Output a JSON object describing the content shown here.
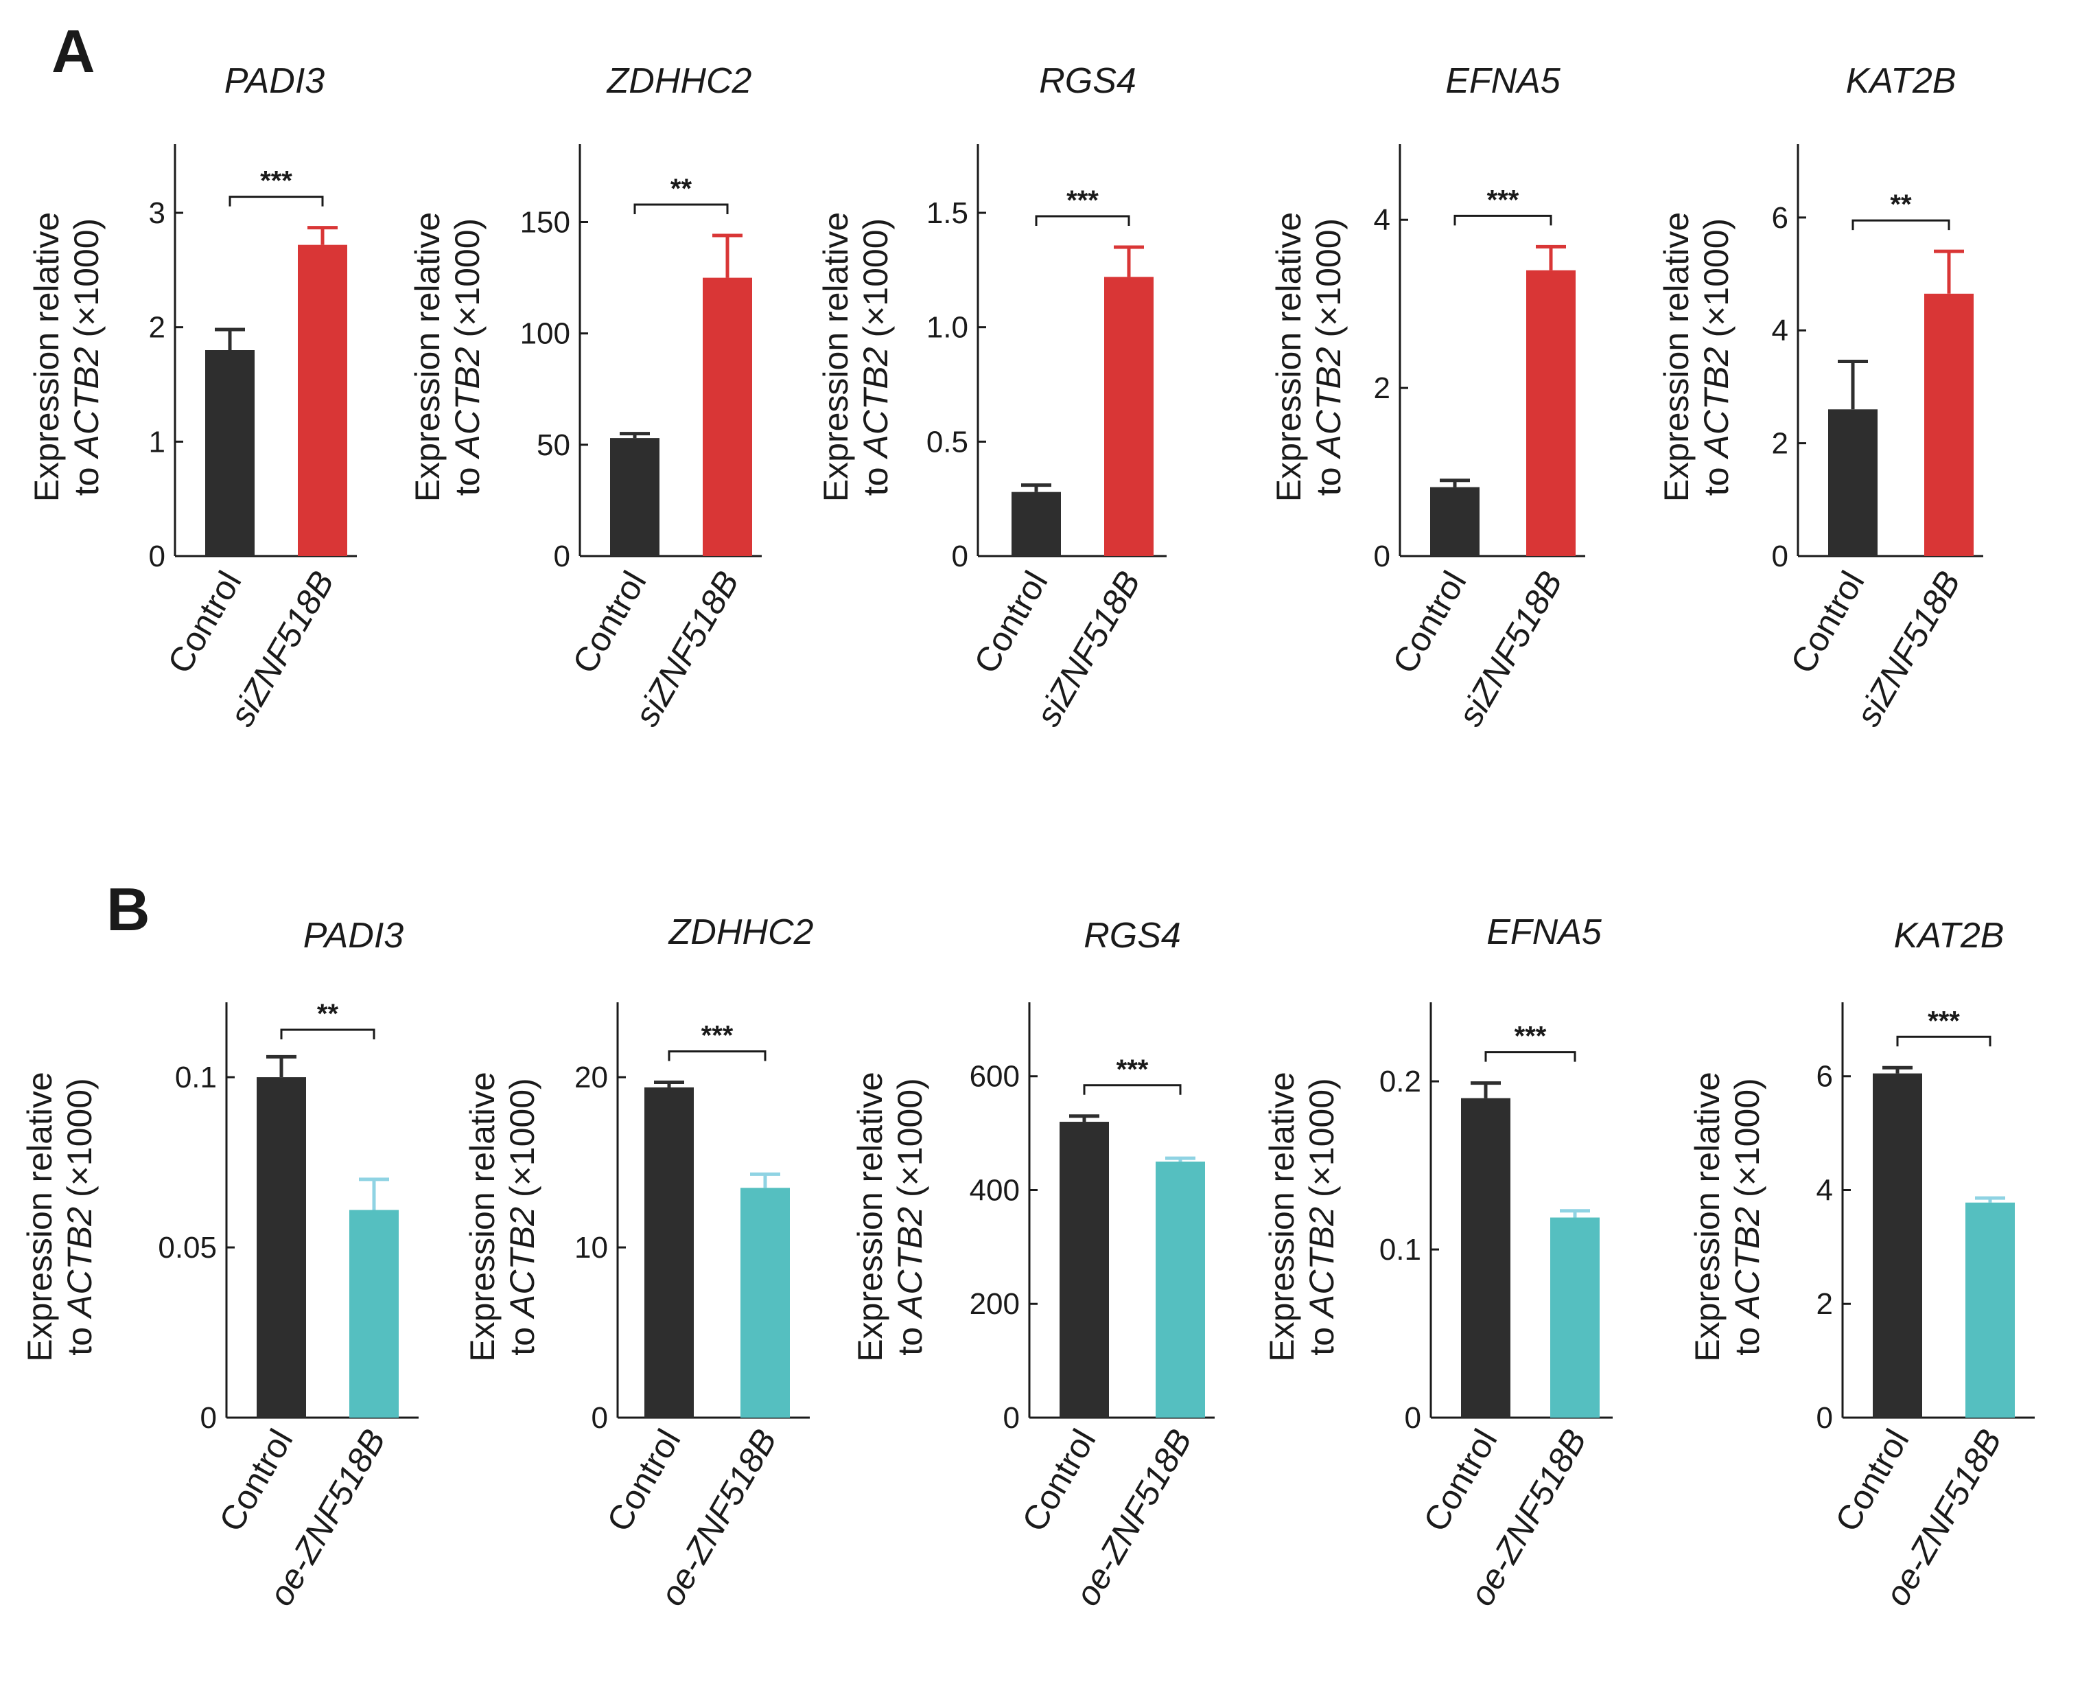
{
  "panels": [
    {
      "letter": "A",
      "treatment_color": "#d93636",
      "control_color": "#2e2e2e",
      "ylabel_line1": "Expression relative",
      "ylabel_line2_prefix": "to ",
      "ylabel_line2_gene": "ACTB2",
      "ylabel_line2_suffix": " (×1000)"
    },
    {
      "letter": "B",
      "treatment_color": "#55bfc0",
      "control_color": "#2e2e2e",
      "ylabel_line1": "Expression relative",
      "ylabel_line2_prefix": "to ",
      "ylabel_line2_gene": "ACTB2",
      "ylabel_line2_suffix": " (×1000)"
    }
  ],
  "chart_data": [
    {
      "panel": "A",
      "type": "bar",
      "title": "PADI3",
      "categories": [
        "Control",
        "siZNF518B"
      ],
      "values": [
        1.8,
        2.72
      ],
      "errors": [
        0.18,
        0.15
      ],
      "ylim": [
        0,
        3.6
      ],
      "ticks": [
        0,
        1,
        2,
        3
      ],
      "tick_labels": [
        "0",
        "1",
        "2",
        "3"
      ],
      "significance": "***",
      "ylabel": "Expression relative to ACTB2 (×1000)"
    },
    {
      "panel": "A",
      "type": "bar",
      "title": "ZDHHC2",
      "categories": [
        "Control",
        "siZNF518B"
      ],
      "values": [
        53,
        125
      ],
      "errors": [
        2,
        19
      ],
      "ylim": [
        0,
        185
      ],
      "ticks": [
        0,
        50,
        100,
        150
      ],
      "tick_labels": [
        "0",
        "50",
        "100",
        "150"
      ],
      "significance": "**",
      "ylabel": "Expression relative to ACTB2 (×1000)"
    },
    {
      "panel": "A",
      "type": "bar",
      "title": "RGS4",
      "categories": [
        "Control",
        "siZNF518B"
      ],
      "values": [
        0.28,
        1.22
      ],
      "errors": [
        0.03,
        0.13
      ],
      "ylim": [
        0,
        1.8
      ],
      "ticks": [
        0,
        0.5,
        1.0,
        1.5
      ],
      "tick_labels": [
        "0",
        "0.5",
        "1.0",
        "1.5"
      ],
      "significance": "***",
      "ylabel": "Expression relative to ACTB2 (×1000)"
    },
    {
      "panel": "A",
      "type": "bar",
      "title": "EFNA5",
      "categories": [
        "Control",
        "siZNF518B"
      ],
      "values": [
        0.82,
        3.4
      ],
      "errors": [
        0.08,
        0.28
      ],
      "ylim": [
        0,
        4.9
      ],
      "ticks": [
        0,
        2,
        4
      ],
      "tick_labels": [
        "0",
        "2",
        "4"
      ],
      "significance": "***",
      "ylabel": "Expression relative to ACTB2 (×1000)"
    },
    {
      "panel": "A",
      "type": "bar",
      "title": "KAT2B",
      "categories": [
        "Control",
        "siZNF518B"
      ],
      "values": [
        2.6,
        4.65
      ],
      "errors": [
        0.85,
        0.75
      ],
      "ylim": [
        0,
        7.3
      ],
      "ticks": [
        0,
        2,
        4,
        6
      ],
      "tick_labels": [
        "0",
        "2",
        "4",
        "6"
      ],
      "significance": "**",
      "ylabel": "Expression relative to ACTB2 (×1000)"
    },
    {
      "panel": "B",
      "type": "bar",
      "title": "PADI3",
      "categories": [
        "Control",
        "oe-ZNF518B"
      ],
      "values": [
        0.1,
        0.061
      ],
      "errors": [
        0.006,
        0.009
      ],
      "ylim": [
        0,
        0.122
      ],
      "ticks": [
        0,
        0.05,
        0.1
      ],
      "tick_labels": [
        "0",
        "0.05",
        "0.1"
      ],
      "significance": "**",
      "ylabel": "Expression relative to ACTB2 (×1000)"
    },
    {
      "panel": "B",
      "type": "bar",
      "title": "ZDHHC2",
      "categories": [
        "Control",
        "oe-ZNF518B"
      ],
      "values": [
        19.4,
        13.5
      ],
      "errors": [
        0.3,
        0.8
      ],
      "ylim": [
        0,
        24.4
      ],
      "ticks": [
        0,
        10,
        20
      ],
      "tick_labels": [
        "0",
        "10",
        "20"
      ],
      "significance": "***",
      "ylabel": "Expression relative to ACTB2 (×1000)"
    },
    {
      "panel": "B",
      "type": "bar",
      "title": "RGS4",
      "categories": [
        "Control",
        "oe-ZNF518B"
      ],
      "values": [
        520,
        450
      ],
      "errors": [
        10,
        6
      ],
      "ylim": [
        0,
        730
      ],
      "ticks": [
        0,
        200,
        400,
        600
      ],
      "tick_labels": [
        "0",
        "200",
        "400",
        "600"
      ],
      "significance": "***",
      "ylabel": "Expression relative to ACTB2 (×1000)"
    },
    {
      "panel": "B",
      "type": "bar",
      "title": "EFNA5",
      "categories": [
        "Control",
        "oe-ZNF518B"
      ],
      "values": [
        0.19,
        0.119
      ],
      "errors": [
        0.009,
        0.004
      ],
      "ylim": [
        0,
        0.247
      ],
      "ticks": [
        0,
        0.1,
        0.2
      ],
      "tick_labels": [
        "0",
        "0.1",
        "0.2"
      ],
      "significance": "***",
      "ylabel": "Expression relative to ACTB2 (×1000)"
    },
    {
      "panel": "B",
      "type": "bar",
      "title": "KAT2B",
      "categories": [
        "Control",
        "oe-ZNF518B"
      ],
      "values": [
        6.05,
        3.78
      ],
      "errors": [
        0.1,
        0.08
      ],
      "ylim": [
        0,
        7.3
      ],
      "ticks": [
        0,
        2,
        4,
        6
      ],
      "tick_labels": [
        "0",
        "2",
        "4",
        "6"
      ],
      "significance": "***",
      "ylabel": "Expression relative to ACTB2 (×1000)"
    }
  ]
}
